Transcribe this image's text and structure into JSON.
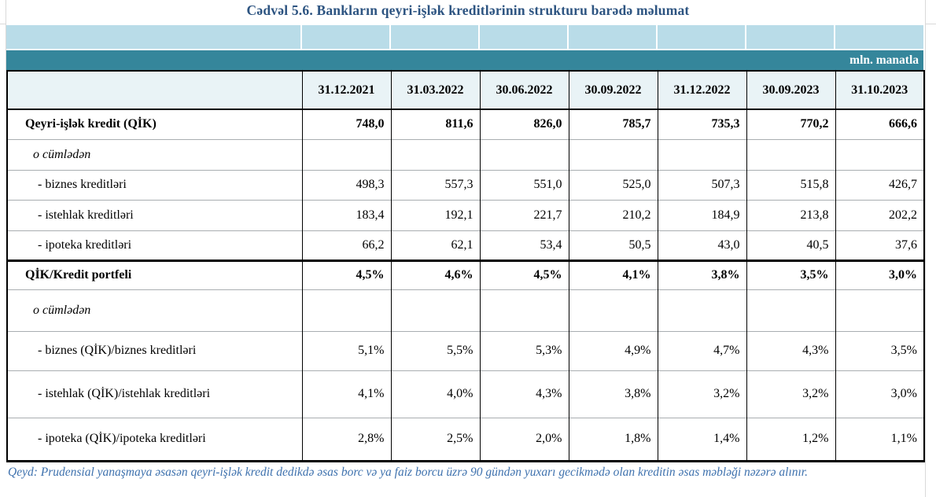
{
  "title": "Cədvəl 5.6. Bankların qeyri-işlək kreditlərinin strukturu barədə məlumat",
  "unit_label": "mln. manatla",
  "table": {
    "columns": [
      "31.12.2021",
      "31.03.2022",
      "30.06.2022",
      "30.09.2022",
      "31.12.2022",
      "30.09.2023",
      "31.10.2023"
    ],
    "rows": [
      {
        "label": "Qeyri-işlək kredit (QİK)",
        "style": "emph",
        "values": [
          "748,0",
          "811,6",
          "826,0",
          "785,7",
          "735,3",
          "770,2",
          "666,6"
        ]
      },
      {
        "label": "o cümlədən",
        "style": "subnote",
        "values": [
          "",
          "",
          "",
          "",
          "",
          "",
          ""
        ]
      },
      {
        "label": "- biznes kreditləri",
        "style": "sub",
        "values": [
          "498,3",
          "557,3",
          "551,0",
          "525,0",
          "507,3",
          "515,8",
          "426,7"
        ]
      },
      {
        "label": "- istehlak kreditləri",
        "style": "sub",
        "values": [
          "183,4",
          "192,1",
          "221,7",
          "210,2",
          "184,9",
          "213,8",
          "202,2"
        ]
      },
      {
        "label": "- ipoteka kreditləri",
        "style": "sub",
        "values": [
          "66,2",
          "62,1",
          "53,4",
          "50,5",
          "43,0",
          "40,5",
          "37,6"
        ]
      },
      {
        "label": "QİK/Kredit portfeli",
        "style": "emph section-start",
        "values": [
          "4,5%",
          "4,6%",
          "4,5%",
          "4,1%",
          "3,8%",
          "3,5%",
          "3,0%"
        ]
      },
      {
        "label": "o cümlədən",
        "style": "subnote",
        "values": [
          "",
          "",
          "",
          "",
          "",
          "",
          ""
        ]
      },
      {
        "label": "- biznes (QİK)/biznes kreditləri",
        "style": "sub",
        "values": [
          "5,1%",
          "5,5%",
          "5,3%",
          "4,9%",
          "4,7%",
          "4,3%",
          "3,5%"
        ]
      },
      {
        "label": "- istehlak (QİK)/istehlak kreditləri",
        "style": "sub",
        "values": [
          "4,1%",
          "4,0%",
          "4,3%",
          "3,8%",
          "3,2%",
          "3,2%",
          "3,0%"
        ]
      },
      {
        "label": "- ipoteka (QİK)/ipoteka kreditləri",
        "style": "sub",
        "values": [
          "2,8%",
          "2,5%",
          "2,0%",
          "1,8%",
          "1,4%",
          "1,2%",
          "1,1%"
        ]
      }
    ]
  },
  "note": "Qeyd: Prudensial yanaşmaya əsasən qeyri-işlək kredit dedikdə əsas borc və ya faiz borcu üzrə 90 gündən yuxarı gecikmədə olan kreditin əsas məbləği nəzərə alınır.",
  "colors": {
    "title": "#2d5481",
    "band_light": "#b9dce8",
    "band_teal": "#35869b",
    "header_bg": "#e9f3f6",
    "note_text": "#3f72ae"
  }
}
